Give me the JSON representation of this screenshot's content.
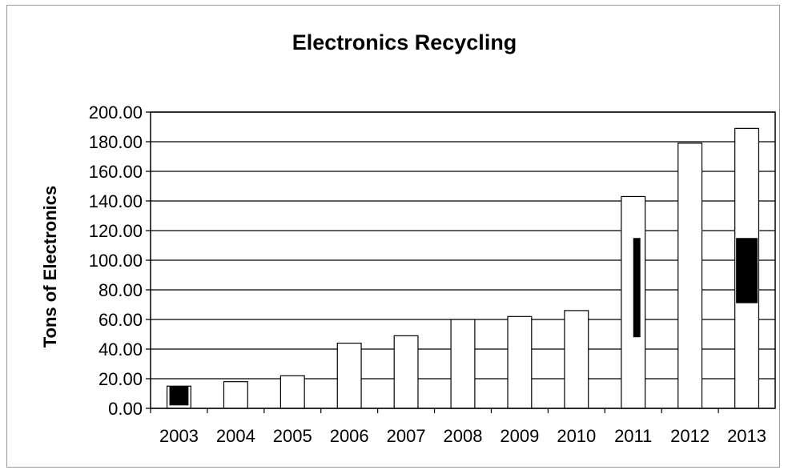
{
  "chart_data": {
    "type": "bar",
    "title": "Electronics Recycling",
    "xlabel": "",
    "ylabel": "Tons of Electronics",
    "categories": [
      "2003",
      "2004",
      "2005",
      "2006",
      "2007",
      "2008",
      "2009",
      "2010",
      "2011",
      "2012",
      "2013"
    ],
    "values": [
      15,
      18,
      22,
      44,
      49,
      60,
      62,
      66,
      143,
      179,
      189
    ],
    "ylim": [
      0,
      200
    ],
    "yticks": [
      "0.00",
      "20.00",
      "40.00",
      "60.00",
      "80.00",
      "100.00",
      "120.00",
      "140.00",
      "160.00",
      "180.00",
      "200.00"
    ],
    "grid": true,
    "legend": "none"
  },
  "colors": {
    "bar_fill": "#ffffff",
    "bar_stroke": "#000000",
    "grid": "#000000",
    "dark_patch": "#000000"
  }
}
